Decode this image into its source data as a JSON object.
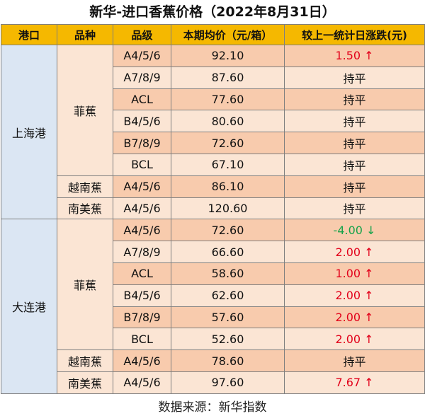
{
  "title": "新华-进口香蕉价格（2022年8月31日）",
  "headers": [
    "港口",
    "品种",
    "品级",
    "本期均价（元/箱）",
    "较上一统计日涨跌(元)"
  ],
  "ports": [
    {
      "name": "上海港",
      "varieties": [
        {
          "name": "菲蕉",
          "rows": [
            {
              "grade": "A4/5/6",
              "price": "92.10",
              "change": "1.50 ↑",
              "dir": "up"
            },
            {
              "grade": "A7/8/9",
              "price": "87.60",
              "change": "持平",
              "dir": "flat"
            },
            {
              "grade": "ACL",
              "price": "77.60",
              "change": "持平",
              "dir": "flat"
            },
            {
              "grade": "B4/5/6",
              "price": "80.60",
              "change": "持平",
              "dir": "flat"
            },
            {
              "grade": "B7/8/9",
              "price": "72.60",
              "change": "持平",
              "dir": "flat"
            },
            {
              "grade": "BCL",
              "price": "67.10",
              "change": "持平",
              "dir": "flat"
            }
          ]
        },
        {
          "name": "越南蕉",
          "rows": [
            {
              "grade": "A4/5/6",
              "price": "86.10",
              "change": "持平",
              "dir": "flat"
            }
          ]
        },
        {
          "name": "南美蕉",
          "rows": [
            {
              "grade": "A4/5/6",
              "price": "120.60",
              "change": "持平",
              "dir": "flat"
            }
          ]
        }
      ]
    },
    {
      "name": "大连港",
      "varieties": [
        {
          "name": "菲蕉",
          "rows": [
            {
              "grade": "A4/5/6",
              "price": "72.60",
              "change": "-4.00 ↓",
              "dir": "down"
            },
            {
              "grade": "A7/8/9",
              "price": "66.60",
              "change": "2.00 ↑",
              "dir": "up"
            },
            {
              "grade": "ACL",
              "price": "58.60",
              "change": "1.00 ↑",
              "dir": "up"
            },
            {
              "grade": "B4/5/6",
              "price": "62.60",
              "change": "2.00 ↑",
              "dir": "up"
            },
            {
              "grade": "B7/8/9",
              "price": "57.60",
              "change": "2.00 ↑",
              "dir": "up"
            },
            {
              "grade": "BCL",
              "price": "52.60",
              "change": "2.00 ↑",
              "dir": "up"
            }
          ]
        },
        {
          "name": "越南蕉",
          "rows": [
            {
              "grade": "A4/5/6",
              "price": "78.60",
              "change": "持平",
              "dir": "flat"
            }
          ]
        },
        {
          "name": "南美蕉",
          "rows": [
            {
              "grade": "A4/5/6",
              "price": "97.60",
              "change": "7.67 ↑",
              "dir": "up"
            }
          ]
        }
      ]
    }
  ],
  "footer": "数据来源：新华指数",
  "colors": {
    "header_bg": "#f5b800",
    "port_bg": "#dbe6f3",
    "row_dark": "#f8cbad",
    "row_light": "#fbe5d4",
    "up": "#e2001a",
    "down": "#16a34a"
  }
}
